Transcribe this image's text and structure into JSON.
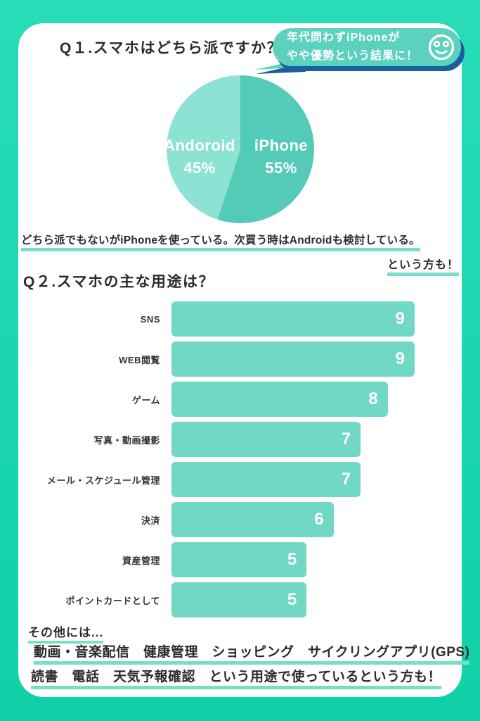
{
  "theme": {
    "bg_top": "#2adcb9",
    "bg_bottom": "#0fd0a7",
    "card": "#ffffff",
    "bubble": "#5bd1be",
    "bubble_shadow": "#1a5f9e",
    "bar": "#71d8c6",
    "underline": "#7adccb",
    "text": "#2b2b2b"
  },
  "q1": {
    "title": "Q１.スマホはどちら派ですか？",
    "bubble": {
      "line1": "年代問わずiPhoneが",
      "line2": "やや優勢という結果に！",
      "icon": "smiley-icon"
    },
    "note_line1": "どちら派でもないがiPhoneを使っている。次買う時はAndroidも検討している。",
    "note_line2": "という方も！"
  },
  "q2": {
    "title": "Q２.スマホの主な用途は？",
    "others_label": "その他には...",
    "others_line1": "動画・音楽配信　健康管理　ショッピング　サイクリングアプリ(GPS)",
    "others_line2": "読書　電話　天気予報確認　という用途で使っているという方も！"
  },
  "chart_data": [
    {
      "type": "pie",
      "title": "Q１.スマホはどちら派ですか？",
      "start_angle": "12-oclock",
      "direction": "clockwise",
      "slices": [
        {
          "label": "iPhone",
          "value": 55,
          "pct": "55%",
          "color": "#53cbb7"
        },
        {
          "label": "Andoroid",
          "value": 45,
          "pct": "45%",
          "color": "#8ce3d3"
        }
      ],
      "label_color": "#ffffff"
    },
    {
      "type": "bar",
      "orientation": "horizontal",
      "title": "Q２.スマホの主な用途は？",
      "categories": [
        "SNS",
        "WEB閲覧",
        "ゲーム",
        "写真・動画撮影",
        "メール・スケジュール管理",
        "決済",
        "資産管理",
        "ポイントカードとして"
      ],
      "values": [
        9,
        9,
        8,
        7,
        7,
        6,
        5,
        5
      ],
      "xlim": [
        0,
        9
      ],
      "bar_color": "#71d8c6",
      "value_label_color": "#ffffff",
      "grid": false,
      "legend": false
    }
  ]
}
